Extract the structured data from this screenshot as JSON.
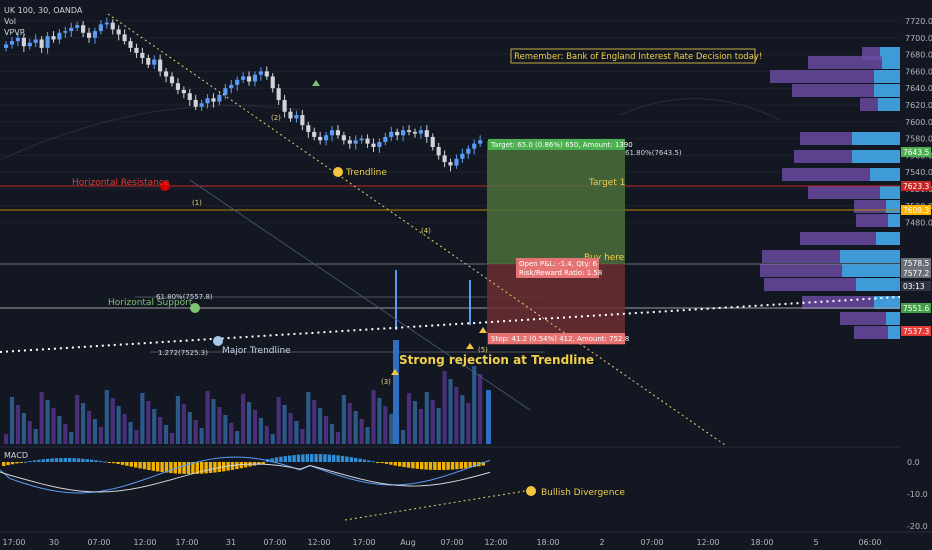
{
  "header": {
    "symbol": "UK 100, 30, OANDA",
    "ind1": "Vol",
    "ind2": "VPVR"
  },
  "notice": "Remember: Bank of England  Interest Rate Decision today!",
  "annotations": {
    "horizontal_resistance": "Horizontal Resistance",
    "trendline": "Trendline",
    "horizontal_support": "Horizontal Support",
    "major_trendline": "Major Trendline",
    "target1": "Target 1",
    "buy_here": "Buy here",
    "strong_rejection": "Strong rejection at Trendline",
    "bullish_divergence": "Bullish Divergence",
    "fib_618_low": "61.80%(7557.8)",
    "fib_618_high": "61.80%(7643.5)",
    "fib_1272": "1.272(7525.3)",
    "wave1": "(1)",
    "wave2": "(2)",
    "wave3": "(3)",
    "wave4": "(4)",
    "wave5": "(5)",
    "target_box": "Target: 65.0 (0.86%) 650, Amount: 1390",
    "stop_box": "Stop: 41.2 (0.54%) 412, Amount: 752.8",
    "pnl_line1": "Open P&L: -1.4, Qty: 6",
    "pnl_line2": "Risk/Reward Ratio: 1.58"
  },
  "macd_label": "MACD",
  "colors": {
    "background": "#131722",
    "bull_candle": "#5b9cf6",
    "bear_candle": "#d1d4dc",
    "resistance": "#c62828",
    "support_line": "#9e9e9e",
    "trendline": "#e6d36c",
    "target_zone": "#5a7f43",
    "stop_zone": "#7a2f33",
    "vpvr_up": "#3f9ad8",
    "vpvr_down": "#6a4aa0",
    "macd_pos": "#2f8ed6",
    "macd_neg": "#f2b200"
  },
  "chart_data": {
    "type": "candlestick",
    "price_axis": {
      "ticks": [
        "7720.0",
        "7700.0",
        "7680.0",
        "7660.0",
        "7640.0",
        "7620.0",
        "7600.0",
        "7580.0",
        "7560.0",
        "7540.0",
        "7520.0",
        "7500.0",
        "7480.0"
      ],
      "badges": [
        {
          "value": "7643.5",
          "color": "#4caf50"
        },
        {
          "value": "7623.3",
          "color": "#c62828"
        },
        {
          "value": "7609.3",
          "color": "#ffb300"
        },
        {
          "value": "7578.5",
          "color": "#6b6f7a"
        },
        {
          "value": "7577.2",
          "color": "#6b6f7a"
        },
        {
          "value": "03:13",
          "color": "#2f3342"
        },
        {
          "value": "7551.6",
          "color": "#43a047"
        },
        {
          "value": "7537.3",
          "color": "#e53935"
        }
      ]
    },
    "macd_axis": {
      "ticks": [
        "0.0",
        "-10.0",
        "-20.0"
      ]
    },
    "time_axis": {
      "ticks": [
        "17:00",
        "30",
        "07:00",
        "12:00",
        "17:00",
        "31",
        "07:00",
        "12:00",
        "17:00",
        "Aug",
        "07:00",
        "12:00",
        "18:00",
        "2",
        "07:00",
        "12:00",
        "18:00",
        "5",
        "06:00"
      ]
    },
    "price_series_close": [
      7692,
      7696,
      7700,
      7690,
      7694,
      7698,
      7688,
      7702,
      7698,
      7706,
      7708,
      7712,
      7715,
      7706,
      7700,
      7708,
      7716,
      7718,
      7710,
      7704,
      7696,
      7688,
      7682,
      7676,
      7668,
      7674,
      7660,
      7654,
      7646,
      7638,
      7634,
      7626,
      7618,
      7622,
      7628,
      7624,
      7632,
      7640,
      7644,
      7650,
      7654,
      7648,
      7656,
      7660,
      7654,
      7640,
      7626,
      7612,
      7604,
      7608,
      7596,
      7588,
      7582,
      7578,
      7584,
      7590,
      7584,
      7578,
      7574,
      7578,
      7580,
      7574,
      7570,
      7576,
      7582,
      7588,
      7584,
      7590,
      7588,
      7586,
      7590,
      7582,
      7570,
      7560,
      7552,
      7548,
      7556,
      7562,
      7568,
      7574,
      7578
    ]
  }
}
